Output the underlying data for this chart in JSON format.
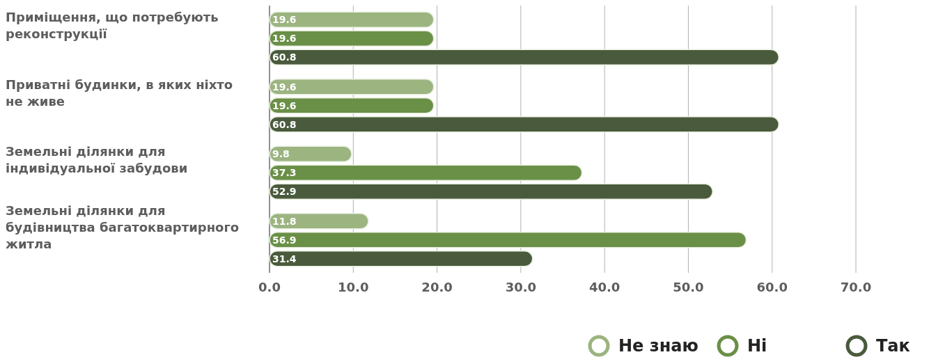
{
  "chart_data": {
    "type": "bar",
    "orientation": "horizontal",
    "categories": [
      "Приміщення, що потребують реконструкції",
      "Приватні будинки, в яких ніхто не живе",
      "Земельні ділянки для індивідуальної забудови",
      "Земельні ділянки для будівництва багатоквартирного житла"
    ],
    "series": [
      {
        "name": "Не знаю",
        "color": "#9bb480",
        "values": [
          19.6,
          19.6,
          9.8,
          11.8
        ]
      },
      {
        "name": "Ні",
        "color": "#6a8f47",
        "values": [
          19.6,
          19.6,
          37.3,
          56.9
        ]
      },
      {
        "name": "Так",
        "color": "#4a5a3c",
        "values": [
          60.8,
          60.8,
          52.9,
          31.4
        ]
      }
    ],
    "xlim": [
      0,
      70
    ],
    "xticks": [
      {
        "value": 0,
        "label": "0.0"
      },
      {
        "value": 10,
        "label": "10.0"
      },
      {
        "value": 20,
        "label": "20.0"
      },
      {
        "value": 30,
        "label": "30.0"
      },
      {
        "value": 40,
        "label": "40.0"
      },
      {
        "value": 50,
        "label": "50.0"
      },
      {
        "value": 60,
        "label": "60.0"
      },
      {
        "value": 70,
        "label": "70.0"
      }
    ],
    "grid": "x",
    "data_labels": true,
    "legend": "bottom right"
  }
}
